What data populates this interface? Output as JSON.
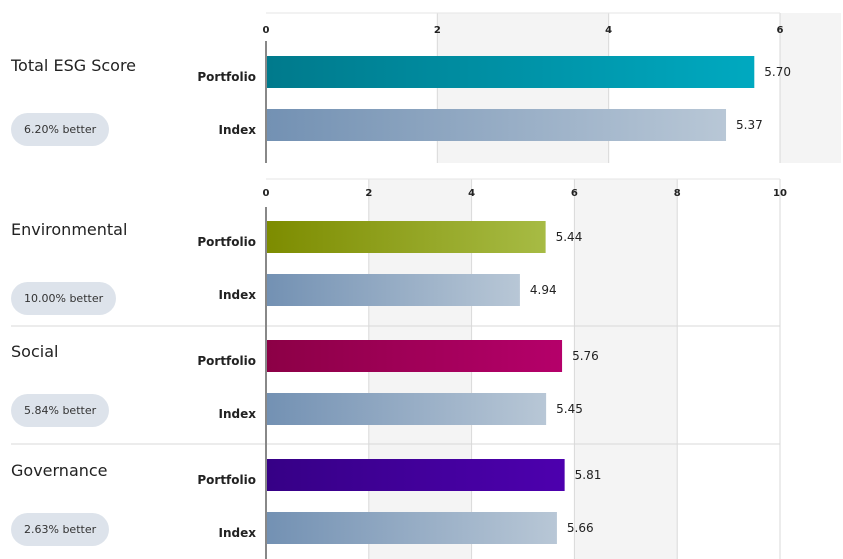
{
  "colors": {
    "index_gradient": [
      "#7391b3",
      "#b8c7d6"
    ],
    "band_fill": "#f4f4f4",
    "grid": "#d9d9d9",
    "axis": "#888888",
    "badge_bg": "#dde3eb"
  },
  "chart_data": [
    {
      "type": "bar",
      "orientation": "horizontal",
      "xlim": [
        0,
        6
      ],
      "xticks": [
        "0",
        "2",
        "4",
        "6"
      ],
      "groups": [
        {
          "title": "Total ESG Score",
          "badge": "6.20% better",
          "colors": [
            "#007a8c",
            "#00a9c0"
          ],
          "bars": [
            {
              "label": "Portfolio",
              "value": 5.7,
              "value_label": "5.70"
            },
            {
              "label": "Index",
              "value": 5.37,
              "value_label": "5.37"
            }
          ]
        }
      ]
    },
    {
      "type": "bar",
      "orientation": "horizontal",
      "xlim": [
        0,
        10
      ],
      "xticks": [
        "0",
        "2",
        "4",
        "6",
        "8",
        "10"
      ],
      "groups": [
        {
          "title": "Environmental",
          "badge": "10.00% better",
          "colors": [
            "#7d8c00",
            "#a7bb44"
          ],
          "bars": [
            {
              "label": "Portfolio",
              "value": 5.44,
              "value_label": "5.44"
            },
            {
              "label": "Index",
              "value": 4.94,
              "value_label": "4.94"
            }
          ]
        },
        {
          "title": "Social",
          "badge": "5.84% better",
          "colors": [
            "#8c0046",
            "#b5006a"
          ],
          "bars": [
            {
              "label": "Portfolio",
              "value": 5.76,
              "value_label": "5.76"
            },
            {
              "label": "Index",
              "value": 5.45,
              "value_label": "5.45"
            }
          ]
        },
        {
          "title": "Governance",
          "badge": "2.63% better",
          "colors": [
            "#360086",
            "#4d00ae"
          ],
          "bars": [
            {
              "label": "Portfolio",
              "value": 5.81,
              "value_label": "5.81"
            },
            {
              "label": "Index",
              "value": 5.66,
              "value_label": "5.66"
            }
          ]
        }
      ]
    }
  ]
}
